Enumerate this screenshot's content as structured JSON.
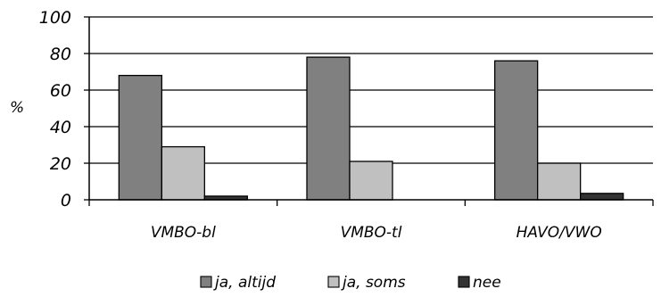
{
  "chart_data": {
    "type": "bar",
    "title": "",
    "xlabel": "",
    "ylabel": "%",
    "ylim": [
      0,
      100
    ],
    "yticks": [
      0,
      20,
      40,
      60,
      80,
      100
    ],
    "grid": true,
    "legend_position": "bottom",
    "categories": [
      "VMBO-bl",
      "VMBO-tl",
      "HAVO/VWO"
    ],
    "series": [
      {
        "name": "ja, altijd",
        "values": [
          68,
          78,
          76
        ],
        "color": "#808080"
      },
      {
        "name": "ja, soms",
        "values": [
          29,
          21,
          20
        ],
        "color": "#c0c0c0"
      },
      {
        "name": "nee",
        "values": [
          2,
          0,
          3.5
        ],
        "color": "#333333"
      }
    ]
  }
}
